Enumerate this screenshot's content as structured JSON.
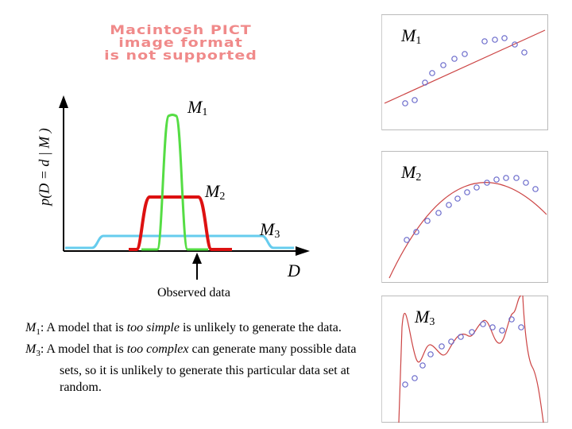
{
  "pict_notice": [
    "Macintosh PICT",
    "image format",
    "is not supported"
  ],
  "y_axis_label": "p(D = d | M )",
  "x_axis_label": "D",
  "curve_labels": {
    "m1": {
      "letter": "M",
      "sub": "1"
    },
    "m2": {
      "letter": "M",
      "sub": "2"
    },
    "m3": {
      "letter": "M",
      "sub": "3"
    }
  },
  "observed_label": "Observed data",
  "panel_labels": {
    "top": {
      "letter": "M",
      "sub": "1"
    },
    "middle": {
      "letter": "M",
      "sub": "2"
    },
    "bottom": {
      "letter": "M",
      "sub": "3"
    }
  },
  "notes": {
    "note1": {
      "letter": "M",
      "sub": "1",
      "prefix": ": A model that is ",
      "emph": "too simple",
      "rest": " is unlikely to generate the data."
    },
    "note2": {
      "letter": "M",
      "sub": "3",
      "prefix": ": A model that is ",
      "emph": "too complex",
      "rest": " can generate many possible data sets, so it is unlikely to generate this particular data set at random."
    }
  },
  "colors": {
    "m1_curve": "#55dd44",
    "m2_curve": "#dd1111",
    "m3_curve": "#66ccee",
    "fit_line": "#cc4444",
    "data_points": "#6a6acb",
    "pict_text": "#f08a8a"
  }
}
